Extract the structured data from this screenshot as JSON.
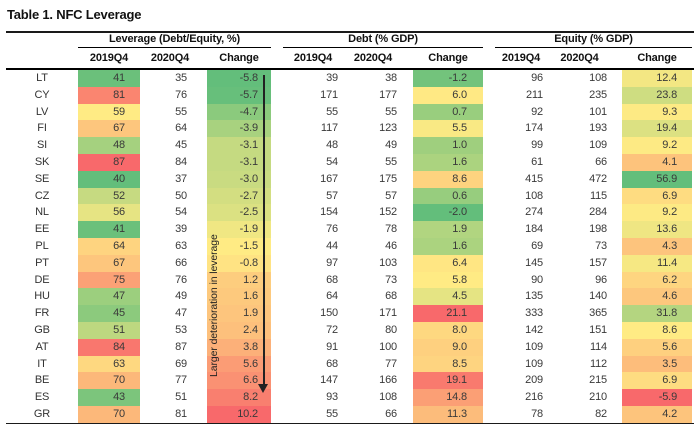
{
  "title": "Table 1. NFC Leverage",
  "colors": {
    "scale_green": "#63BE7B",
    "scale_yellow": "#FFEB84",
    "scale_red": "#F8696B",
    "rule": "#1a1a1a",
    "text": "#3a3a3a"
  },
  "chart_data": {
    "type": "table",
    "title": "Table 1. NFC Leverage",
    "column_groups": [
      "Leverage (Debt/Equity, %)",
      "Debt (% GDP)",
      "Equity (% GDP)"
    ],
    "sub_columns": [
      "2019Q4",
      "2020Q4",
      "Change"
    ],
    "columns_order": [
      "country",
      "leverage_2019Q4",
      "leverage_2020Q4",
      "leverage_change",
      "debt_2019Q4",
      "debt_2020Q4",
      "debt_change",
      "equity_2019Q4",
      "equity_2020Q4",
      "equity_change"
    ],
    "rows": [
      [
        "LT",
        41,
        35,
        -5.8,
        39,
        38,
        -1.2,
        96,
        108,
        12.4
      ],
      [
        "CY",
        81,
        76,
        -5.7,
        171,
        177,
        6.0,
        211,
        235,
        23.8
      ],
      [
        "LV",
        59,
        55,
        -4.7,
        55,
        55,
        0.7,
        92,
        101,
        9.3
      ],
      [
        "FI",
        67,
        64,
        -3.9,
        117,
        123,
        5.5,
        174,
        193,
        19.4
      ],
      [
        "SI",
        48,
        45,
        -3.1,
        48,
        49,
        1.0,
        99,
        109,
        9.2
      ],
      [
        "SK",
        87,
        84,
        -3.1,
        54,
        55,
        1.6,
        61,
        66,
        4.1
      ],
      [
        "SE",
        40,
        37,
        -3.0,
        167,
        175,
        8.6,
        415,
        472,
        56.9
      ],
      [
        "CZ",
        52,
        50,
        -2.7,
        57,
        57,
        0.6,
        108,
        115,
        6.9
      ],
      [
        "NL",
        56,
        54,
        -2.5,
        154,
        152,
        -2.0,
        274,
        284,
        9.2
      ],
      [
        "EE",
        41,
        39,
        -1.9,
        76,
        78,
        1.9,
        184,
        198,
        13.6
      ],
      [
        "PL",
        64,
        63,
        -1.5,
        44,
        46,
        1.6,
        69,
        73,
        4.3
      ],
      [
        "PT",
        67,
        66,
        -0.8,
        97,
        103,
        6.4,
        145,
        157,
        11.4
      ],
      [
        "DE",
        75,
        76,
        1.2,
        68,
        73,
        5.8,
        90,
        96,
        6.2
      ],
      [
        "HU",
        47,
        49,
        1.6,
        64,
        68,
        4.5,
        135,
        140,
        4.6
      ],
      [
        "FR",
        45,
        47,
        1.9,
        150,
        171,
        21.1,
        333,
        365,
        31.8
      ],
      [
        "GB",
        51,
        53,
        2.4,
        72,
        80,
        8.0,
        142,
        151,
        8.6
      ],
      [
        "AT",
        84,
        87,
        3.8,
        91,
        100,
        9.0,
        109,
        114,
        5.6
      ],
      [
        "IT",
        63,
        69,
        5.6,
        68,
        77,
        8.5,
        109,
        112,
        3.5
      ],
      [
        "BE",
        70,
        77,
        6.6,
        147,
        166,
        19.1,
        209,
        215,
        6.9
      ],
      [
        "ES",
        43,
        51,
        8.2,
        93,
        108,
        14.8,
        216,
        210,
        -5.9
      ],
      [
        "GR",
        70,
        81,
        10.2,
        55,
        66,
        11.3,
        78,
        82,
        4.2
      ]
    ],
    "heatmap": {
      "colored_columns": {
        "leverage_2019Q4": "high=red",
        "leverage_change": "high=red",
        "debt_change": "high=red",
        "equity_change": "high=green"
      },
      "midpoint": "median"
    },
    "annotation": {
      "label": "Larger deterioration in leverage",
      "arrow_direction": "down"
    },
    "grid": false,
    "legend_position": "none"
  }
}
